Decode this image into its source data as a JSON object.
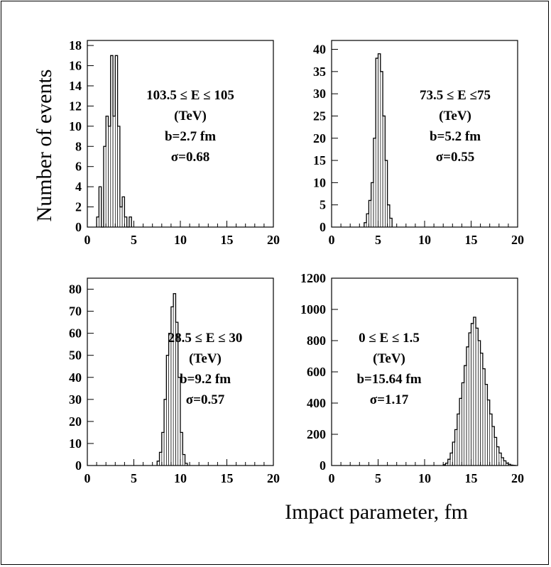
{
  "figure": {
    "ylabel": "Number of events",
    "xlabel": "Impact parameter, fm"
  },
  "chart_data": [
    {
      "type": "bar",
      "bin_width": 0.25,
      "xlim": [
        0,
        20
      ],
      "ylim": [
        0,
        18.5
      ],
      "xticks": [
        0,
        5,
        10,
        15,
        20
      ],
      "yticks": [
        0,
        2,
        4,
        6,
        8,
        10,
        12,
        14,
        16,
        18
      ],
      "annotation": [
        "103.5 ≤  E ≤ 105",
        "(TeV)",
        "b=2.7 fm",
        "σ=0.68"
      ],
      "bins": [
        {
          "x": 1.0,
          "y": 1
        },
        {
          "x": 1.25,
          "y": 4
        },
        {
          "x": 1.5,
          "y": 0
        },
        {
          "x": 1.75,
          "y": 8
        },
        {
          "x": 2.0,
          "y": 11
        },
        {
          "x": 2.25,
          "y": 10
        },
        {
          "x": 2.5,
          "y": 17
        },
        {
          "x": 2.75,
          "y": 11
        },
        {
          "x": 3.0,
          "y": 17
        },
        {
          "x": 3.25,
          "y": 10
        },
        {
          "x": 3.5,
          "y": 2
        },
        {
          "x": 3.75,
          "y": 3
        },
        {
          "x": 4.0,
          "y": 1
        },
        {
          "x": 4.25,
          "y": 0
        },
        {
          "x": 4.5,
          "y": 1
        }
      ]
    },
    {
      "type": "bar",
      "bin_width": 0.25,
      "xlim": [
        0,
        20
      ],
      "ylim": [
        0,
        42
      ],
      "xticks": [
        0,
        5,
        10,
        15,
        20
      ],
      "yticks": [
        0,
        5,
        10,
        15,
        20,
        25,
        30,
        35,
        40
      ],
      "annotation": [
        "73.5 ≤  E ≤75",
        "(TeV)",
        "b=5.2 fm",
        "σ=0.55"
      ],
      "bins": [
        {
          "x": 3.5,
          "y": 1
        },
        {
          "x": 3.75,
          "y": 3
        },
        {
          "x": 4.0,
          "y": 6
        },
        {
          "x": 4.25,
          "y": 10
        },
        {
          "x": 4.5,
          "y": 20
        },
        {
          "x": 4.75,
          "y": 38
        },
        {
          "x": 5.0,
          "y": 39
        },
        {
          "x": 5.25,
          "y": 35
        },
        {
          "x": 5.5,
          "y": 25
        },
        {
          "x": 5.75,
          "y": 15
        },
        {
          "x": 6.0,
          "y": 5
        },
        {
          "x": 6.25,
          "y": 2
        }
      ]
    },
    {
      "type": "bar",
      "bin_width": 0.25,
      "xlim": [
        0,
        20
      ],
      "ylim": [
        0,
        85
      ],
      "xticks": [
        0,
        5,
        10,
        15,
        20
      ],
      "yticks": [
        0,
        10,
        20,
        30,
        40,
        50,
        60,
        70,
        80
      ],
      "annotation": [
        "28.5 ≤  E ≤ 30",
        "(TeV)",
        "b=9.2 fm",
        "σ=0.57"
      ],
      "bins": [
        {
          "x": 7.5,
          "y": 2
        },
        {
          "x": 7.75,
          "y": 6
        },
        {
          "x": 8.0,
          "y": 15
        },
        {
          "x": 8.25,
          "y": 30
        },
        {
          "x": 8.5,
          "y": 50
        },
        {
          "x": 8.75,
          "y": 60
        },
        {
          "x": 9.0,
          "y": 72
        },
        {
          "x": 9.25,
          "y": 78
        },
        {
          "x": 9.5,
          "y": 65
        },
        {
          "x": 9.75,
          "y": 40
        },
        {
          "x": 10.0,
          "y": 15
        },
        {
          "x": 10.25,
          "y": 5
        },
        {
          "x": 10.5,
          "y": 1
        }
      ]
    },
    {
      "type": "bar",
      "bin_width": 0.25,
      "xlim": [
        0,
        20
      ],
      "ylim": [
        0,
        1200
      ],
      "xticks": [
        0,
        5,
        10,
        15,
        20
      ],
      "yticks": [
        0,
        200,
        400,
        600,
        800,
        1000,
        1200
      ],
      "annotation": [
        "0 ≤  E ≤ 1.5",
        "(TeV)",
        "b=15.64 fm",
        "σ=1.17"
      ],
      "bins": [
        {
          "x": 12.0,
          "y": 5
        },
        {
          "x": 12.25,
          "y": 15
        },
        {
          "x": 12.5,
          "y": 40
        },
        {
          "x": 12.75,
          "y": 80
        },
        {
          "x": 13.0,
          "y": 150
        },
        {
          "x": 13.25,
          "y": 230
        },
        {
          "x": 13.5,
          "y": 330
        },
        {
          "x": 13.75,
          "y": 430
        },
        {
          "x": 14.0,
          "y": 530
        },
        {
          "x": 14.25,
          "y": 640
        },
        {
          "x": 14.5,
          "y": 760
        },
        {
          "x": 14.75,
          "y": 850
        },
        {
          "x": 15.0,
          "y": 910
        },
        {
          "x": 15.25,
          "y": 950
        },
        {
          "x": 15.5,
          "y": 880
        },
        {
          "x": 15.75,
          "y": 800
        },
        {
          "x": 16.0,
          "y": 720
        },
        {
          "x": 16.25,
          "y": 620
        },
        {
          "x": 16.5,
          "y": 520
        },
        {
          "x": 16.75,
          "y": 420
        },
        {
          "x": 17.0,
          "y": 330
        },
        {
          "x": 17.25,
          "y": 250
        },
        {
          "x": 17.5,
          "y": 180
        },
        {
          "x": 17.75,
          "y": 120
        },
        {
          "x": 18.0,
          "y": 80
        },
        {
          "x": 18.25,
          "y": 50
        },
        {
          "x": 18.5,
          "y": 30
        },
        {
          "x": 18.75,
          "y": 15
        },
        {
          "x": 19.0,
          "y": 8
        },
        {
          "x": 19.25,
          "y": 3
        },
        {
          "x": 19.5,
          "y": 1
        }
      ]
    }
  ]
}
